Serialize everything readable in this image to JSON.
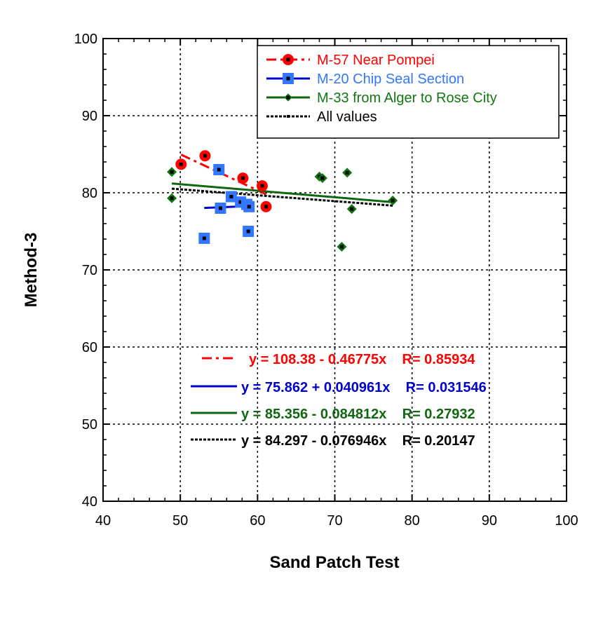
{
  "chart_data": {
    "type": "scatter",
    "xlabel": "Sand Patch Test",
    "ylabel": "Method-3",
    "xlim": [
      40,
      100
    ],
    "ylim": [
      40,
      100
    ],
    "xticks": [
      40,
      50,
      60,
      70,
      80,
      90,
      100
    ],
    "yticks": [
      40,
      50,
      60,
      70,
      80,
      90,
      100
    ],
    "grid": true,
    "legend_position": "top-right",
    "series": [
      {
        "name": "M-57 Near Pompei",
        "color": "#ff0000",
        "marker": "circle",
        "x": [
          50.1,
          53.2,
          58.1,
          60.6,
          61.1
        ],
        "y": [
          83.7,
          84.8,
          81.9,
          80.9,
          78.2
        ],
        "fit": {
          "intercept": 108.38,
          "slope": -0.46775,
          "range": [
            50.1,
            61.1
          ],
          "dash": "dash-dot",
          "label": "y = 108.38 - 0.46775x    R= 0.85934",
          "label_color": "#ff0000"
        }
      },
      {
        "name": "M-20 Chip Seal Section",
        "color": "#3377ff",
        "marker": "square",
        "x": [
          55.0,
          53.1,
          55.2,
          56.6,
          57.8,
          58.6,
          58.9,
          58.8
        ],
        "y": [
          83.0,
          74.1,
          78.0,
          79.5,
          78.8,
          78.5,
          78.2,
          75.0
        ],
        "fit": {
          "intercept": 75.862,
          "slope": 0.040961,
          "range": [
            53.1,
            58.9
          ],
          "dash": "solid",
          "line_color": "#0000cc",
          "label": "y = 75.862 + 0.040961x    R= 0.031546",
          "label_color": "#0000cc"
        }
      },
      {
        "name": "M-33 from Alger to Rose City",
        "color": "#117711",
        "marker": "diamond",
        "x": [
          48.9,
          48.9,
          68.0,
          68.4,
          71.6,
          72.2,
          70.9,
          77.5
        ],
        "y": [
          82.7,
          79.3,
          82.1,
          81.9,
          82.6,
          77.9,
          73.0,
          79.0
        ],
        "fit": {
          "intercept": 85.356,
          "slope": -0.084812,
          "range": [
            48.9,
            77.5
          ],
          "dash": "solid",
          "line_color": "#116611",
          "label": "y = 85.356 - 0.084812x    R= 0.27932",
          "label_color": "#116611"
        }
      },
      {
        "name": "All values",
        "color": "#000000",
        "marker": "dot",
        "fit": {
          "intercept": 84.297,
          "slope": -0.076946,
          "range": [
            48.9,
            77.5
          ],
          "dash": "dotted",
          "line_color": "#000000",
          "label": "y = 84.297 - 0.076946x    R= 0.20147",
          "label_color": "#000000"
        }
      }
    ]
  }
}
